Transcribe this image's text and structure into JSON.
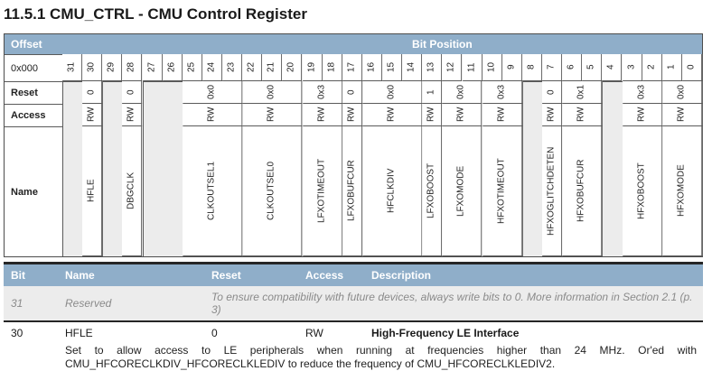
{
  "page": {
    "title": "11.5.1 CMU_CTRL - CMU Control Register"
  },
  "colors": {
    "header_blue": "#8FAEC9",
    "reserved_gray": "#ECECEC",
    "border_gray": "#5a5a5a",
    "dark_rule": "#262626",
    "muted_text": "#8a8a8a"
  },
  "register_table": {
    "offset_label": "Offset",
    "bit_position_label": "Bit Position",
    "offset_value": "0x000",
    "row_labels": {
      "reset": "Reset",
      "access": "Access",
      "name": "Name"
    },
    "bit_numbers": [
      31,
      30,
      29,
      28,
      27,
      26,
      25,
      24,
      23,
      22,
      21,
      20,
      19,
      18,
      17,
      16,
      15,
      14,
      13,
      12,
      11,
      10,
      9,
      8,
      7,
      6,
      5,
      4,
      3,
      2,
      1,
      0
    ],
    "fields": [
      {
        "bits": "31",
        "span": 1,
        "reserved": true
      },
      {
        "bits": "30",
        "span": 1,
        "name": "HFLE",
        "reset": "0",
        "access": "RW"
      },
      {
        "bits": "29",
        "span": 1,
        "reserved": true
      },
      {
        "bits": "28",
        "span": 1,
        "name": "DBGCLK",
        "reset": "0",
        "access": "RW"
      },
      {
        "bits": "27:26",
        "span": 2,
        "reserved": true
      },
      {
        "bits": "25:23",
        "span": 3,
        "name": "CLKOUTSEL1",
        "reset": "0x0",
        "access": "RW"
      },
      {
        "bits": "22:20",
        "span": 3,
        "name": "CLKOUTSEL0",
        "reset": "0x0",
        "access": "RW"
      },
      {
        "bits": "19:18",
        "span": 2,
        "name": "LFXOTIMEOUT",
        "reset": "0x3",
        "access": "RW"
      },
      {
        "bits": "17",
        "span": 1,
        "name": "LFXOBUFCUR",
        "reset": "0",
        "access": "RW"
      },
      {
        "bits": "16:14",
        "span": 3,
        "name": "HFCLKDIV",
        "reset": "0x0",
        "access": "RW"
      },
      {
        "bits": "13",
        "span": 1,
        "name": "LFXOBOOST",
        "reset": "1",
        "access": "RW"
      },
      {
        "bits": "12:11",
        "span": 2,
        "name": "LFXOMODE",
        "reset": "0x0",
        "access": "RW"
      },
      {
        "bits": "10:9",
        "span": 2,
        "name": "HFXOTIMEOUT",
        "reset": "0x3",
        "access": "RW"
      },
      {
        "bits": "8",
        "span": 1,
        "reserved": true
      },
      {
        "bits": "7",
        "span": 1,
        "name": "HFXOGLITCHDETEN",
        "reset": "0",
        "access": "RW"
      },
      {
        "bits": "6:5",
        "span": 2,
        "name": "HFXOBUFCUR",
        "reset": "0x1",
        "access": "RW"
      },
      {
        "bits": "4",
        "span": 1,
        "reserved": true
      },
      {
        "bits": "3:2",
        "span": 2,
        "name": "HFXOBOOST",
        "reset": "0x3",
        "access": "RW"
      },
      {
        "bits": "1:0",
        "span": 2,
        "name": "HFXOMODE",
        "reset": "0x0",
        "access": "RW"
      }
    ]
  },
  "detail_table": {
    "headers": [
      "Bit",
      "Name",
      "Reset",
      "Access",
      "Description"
    ],
    "rows": [
      {
        "bit": "31",
        "name": "Reserved",
        "description": "To ensure compatibility with future devices, always write bits to 0. More information in Section 2.1 (p. 3)"
      },
      {
        "bit": "30",
        "name": "HFLE",
        "reset": "0",
        "access": "RW",
        "description_title": "High-Frequency LE Interface",
        "description_body": "Set to allow access to LE peripherals when running at frequencies higher than 24 MHz. Or'ed with CMU_HFCORECLKDIV_HFCORECLKLEDIV to reduce the frequency of CMU_HFCORECLKLEDIV2."
      }
    ]
  }
}
